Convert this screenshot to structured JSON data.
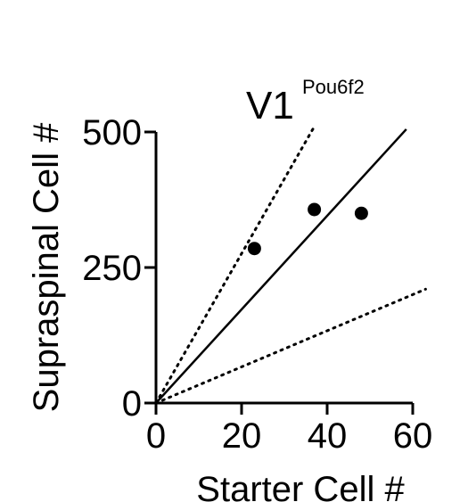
{
  "chart_data": {
    "type": "scatter",
    "title": "V1",
    "title_superscript": "Pou6f2",
    "xlabel": "Starter Cell #",
    "ylabel": "Supraspinal  Cell #",
    "xlim": [
      0,
      60
    ],
    "ylim": [
      0,
      500
    ],
    "x_ticks": [
      0,
      20,
      40,
      60
    ],
    "y_ticks": [
      0,
      250,
      500
    ],
    "grid": false,
    "points": [
      {
        "x": 23,
        "y": 285
      },
      {
        "x": 37,
        "y": 357
      },
      {
        "x": 48,
        "y": 350
      }
    ],
    "reference_lines": [
      {
        "style": "dotted",
        "points": [
          [
            0,
            0
          ],
          [
            37,
            510
          ]
        ]
      },
      {
        "style": "solid",
        "points": [
          [
            0,
            0
          ],
          [
            58.5,
            505
          ]
        ]
      },
      {
        "style": "dotted",
        "points": [
          [
            0,
            0
          ],
          [
            63,
            210
          ]
        ]
      }
    ],
    "colors": {
      "marks": "#000000",
      "background": "#ffffff"
    }
  }
}
